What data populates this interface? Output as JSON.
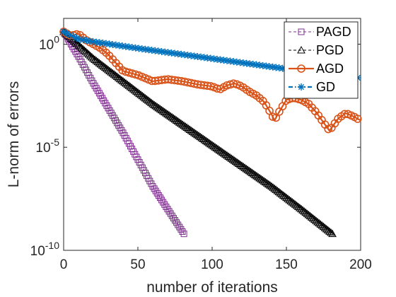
{
  "chart_data": {
    "type": "line",
    "xlabel": "number of iterations",
    "ylabel": "L-norm of errors",
    "xlim": [
      0,
      200
    ],
    "ylim_log10": [
      -10,
      1.25
    ],
    "y_scale": "log",
    "x_ticks": [
      0,
      50,
      100,
      150,
      200
    ],
    "x_tick_labels": [
      "0",
      "50",
      "100",
      "150",
      "200"
    ],
    "y_ticks_log10": [
      0,
      -5,
      -10
    ],
    "y_tick_bases": [
      "10",
      "10",
      "10"
    ],
    "y_tick_exponents": [
      "0",
      "-5",
      "-10"
    ],
    "grid": false,
    "legend_placement": "top-right",
    "series": [
      {
        "name": "PAGD",
        "color": "#7e2f8e",
        "marker": "square",
        "style": "dashed",
        "x": [
          0,
          10,
          20,
          30,
          40,
          50,
          60,
          70,
          81
        ],
        "y_log10": [
          0.6,
          -0.6,
          -1.9,
          -3.1,
          -4.3,
          -5.6,
          -6.9,
          -8.0,
          -9.2
        ]
      },
      {
        "name": "PGD",
        "color": "#000000",
        "marker": "triangle",
        "style": "dashed",
        "x": [
          0,
          20,
          40,
          60,
          80,
          100,
          120,
          140,
          160,
          181
        ],
        "y_log10": [
          0.6,
          -0.7,
          -1.8,
          -2.9,
          -3.9,
          -4.9,
          -5.9,
          -6.9,
          -8.0,
          -9.2
        ]
      },
      {
        "name": "AGD",
        "color": "#d95319",
        "marker": "circle",
        "style": "solid",
        "x": [
          0,
          5,
          10,
          15,
          20,
          25,
          30,
          40,
          50,
          60,
          70,
          80,
          90,
          100,
          105,
          110,
          115,
          120,
          125,
          130,
          135,
          140,
          142,
          145,
          150,
          155,
          160,
          165,
          170,
          175,
          179,
          182,
          185,
          190,
          195,
          200
        ],
        "y_log10": [
          0.6,
          0.4,
          0.5,
          0.2,
          0.0,
          -0.2,
          -0.5,
          -1.3,
          -1.5,
          -1.8,
          -1.7,
          -1.8,
          -1.95,
          -2.05,
          -2.2,
          -2.0,
          -1.9,
          -2.05,
          -2.3,
          -2.5,
          -2.8,
          -3.4,
          -3.7,
          -3.3,
          -2.7,
          -2.6,
          -2.7,
          -2.9,
          -3.3,
          -3.8,
          -4.2,
          -3.9,
          -3.6,
          -3.35,
          -3.5,
          -3.7
        ]
      },
      {
        "name": "GD",
        "color": "#0072bd",
        "marker": "asterisk",
        "style": "dashdot",
        "x": [
          0,
          10,
          20,
          50,
          100,
          150,
          200
        ],
        "y_log10": [
          0.6,
          0.25,
          0.12,
          -0.2,
          -0.7,
          -1.2,
          -1.65
        ]
      }
    ]
  }
}
